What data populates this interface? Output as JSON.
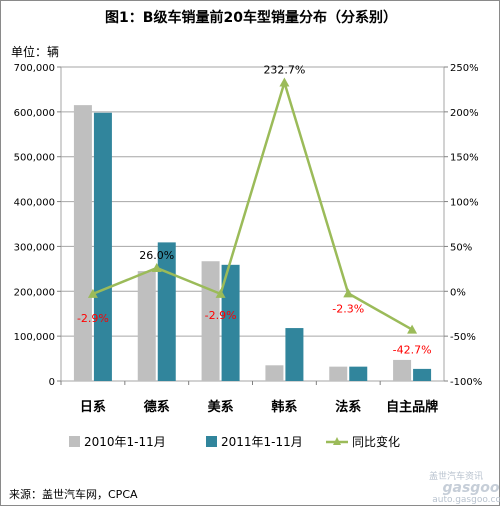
{
  "chart_data": {
    "type": "bar",
    "title": "图1：B级车销量前20车型销量分布（分系别）",
    "unit_label": "单位：辆",
    "categories": [
      "日系",
      "德系",
      "美系",
      "韩系",
      "法系",
      "自主品牌"
    ],
    "series": [
      {
        "name": "2010年1-11月",
        "type": "bar",
        "axis": "left",
        "color": "#bfbfbf",
        "values": [
          615000,
          245000,
          267000,
          35000,
          32000,
          47000
        ]
      },
      {
        "name": "2011年1-11月",
        "type": "bar",
        "axis": "left",
        "color": "#31859c",
        "values": [
          598000,
          309000,
          259000,
          118000,
          32000,
          27000
        ]
      },
      {
        "name": "同比变化",
        "type": "line",
        "axis": "right",
        "color": "#9bbb59",
        "values": [
          -2.9,
          26.0,
          -2.9,
          232.7,
          -2.3,
          -42.7
        ]
      }
    ],
    "data_labels": [
      "-2.9%",
      "26.0%",
      "-2.9%",
      "232.7%",
      "-2.3%",
      "-42.7%"
    ],
    "y_left": {
      "range": [
        0,
        700000
      ],
      "ticks": [
        "0",
        "100,000",
        "200,000",
        "300,000",
        "400,000",
        "500,000",
        "600,000",
        "700,000"
      ]
    },
    "y_right": {
      "range": [
        -100,
        250
      ],
      "ticks": [
        "-100%",
        "-50%",
        "0%",
        "50%",
        "100%",
        "150%",
        "200%",
        "250%"
      ]
    },
    "legend_position": "bottom",
    "source": "来源：盖世汽车网，CPCA"
  },
  "watermark": {
    "text_cn": "盖世汽车资讯",
    "text_logo": "gasgoo",
    "url": "auto.gasgoo.com"
  }
}
